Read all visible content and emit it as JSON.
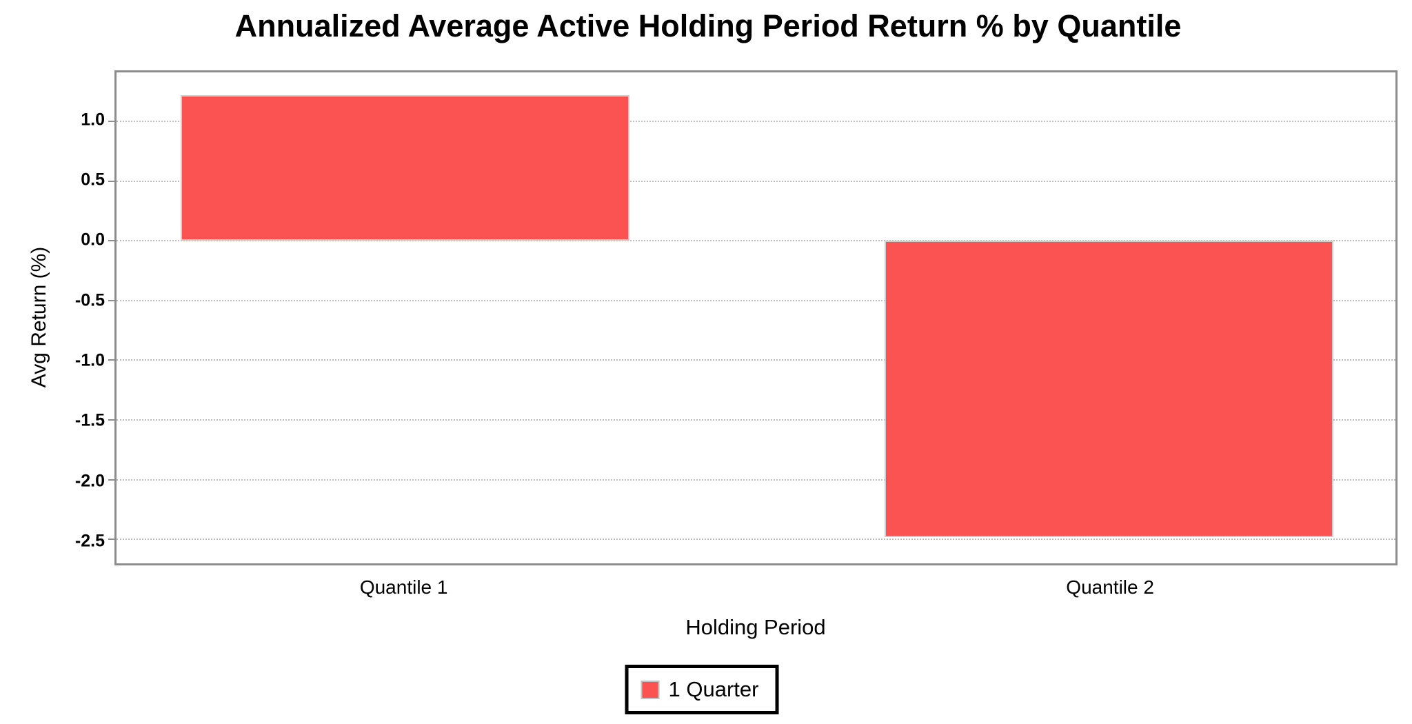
{
  "chart_data": {
    "type": "bar",
    "title": "Annualized Average Active Holding Period Return % by Quantile",
    "xlabel": "Holding Period",
    "ylabel": "Avg Return (%)",
    "categories": [
      "Quantile 1",
      "Quantile 2"
    ],
    "series": [
      {
        "name": "1 Quarter",
        "values": [
          1.22,
          -2.48
        ]
      }
    ],
    "ylim": [
      -2.7,
      1.41
    ],
    "yticks": [
      1.0,
      0.5,
      0.0,
      -0.5,
      -1.0,
      -1.5,
      -2.0,
      -2.5
    ],
    "ytick_labels": [
      "1.0",
      "0.5",
      "0.0",
      "-0.5",
      "-1.0",
      "-1.5",
      "-2.0",
      "-2.5"
    ],
    "grid": "horizontal dotted, drawn under bars",
    "legend": {
      "position": "bottom-center",
      "entries": [
        "1 Quarter"
      ]
    },
    "colors": {
      "bar_fill": "#FB5252",
      "bar_edge": "#CFCFCF",
      "grid_line": "#BDBDBD",
      "plot_border": "#8C8C8C",
      "legend_border": "#000000",
      "text": "#000000",
      "background": "#FFFFFF"
    },
    "layout": {
      "bar_centers_frac": [
        0.2255,
        0.776
      ],
      "bar_width_frac": 0.351
    }
  }
}
